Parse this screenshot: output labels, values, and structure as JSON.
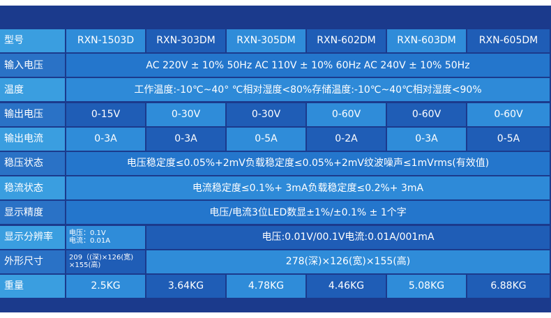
{
  "table": {
    "rows": [
      {
        "label": "型号",
        "cells": [
          "RXN-1503D",
          "RXN-303DM",
          "RXN-305DM",
          "RXN-602DM",
          "RXN-603DM",
          "RXN-605DM"
        ]
      },
      {
        "label": "输入电压",
        "cells": [
          "AC 220V ± 10% 50Hz AC 110V ± 10% 60Hz AC 240V ± 10% 50Hz"
        ]
      },
      {
        "label": "温度",
        "cells": [
          "工作温度:-10℃~40°  ℃相对湿度<80%存储温度:-10℃~40℃相对湿度<90%"
        ]
      },
      {
        "label": "输出电压",
        "cells": [
          "0-15V",
          "0-30V",
          "0-30V",
          "0-60V",
          "0-60V",
          "0-60V"
        ]
      },
      {
        "label": "输出电流",
        "cells": [
          "0-3A",
          "0-3A",
          "0-5A",
          "0-2A",
          "0-3A",
          "0-5A"
        ]
      },
      {
        "label": "稳压状态",
        "cells": [
          "电压稳定度≤0.05%+2mV负载稳定度≤0.05%+2mV纹波噪声≤1mVrms(有效值)"
        ]
      },
      {
        "label": "稳流状态",
        "cells": [
          "电流稳定度≤0.1%+ 3mA负载稳定度≤0.2%+ 3mA"
        ]
      },
      {
        "label": "显示精度",
        "cells": [
          "电压/电流3位LED数显±1%/±0.1% ± 1个字"
        ]
      },
      {
        "label": "显示分辨率",
        "cells": [
          "电压：0.1V\n电流：0.01A",
          "电压:0.01V/00.1V电流:0.01A/001mA"
        ]
      },
      {
        "label": "外形尺寸",
        "cells": [
          "209（(深)×126(宽)\n×155(高)",
          "278(深)×126(宽)×155(高)"
        ]
      },
      {
        "label": "重量",
        "cells": [
          "2.5KG",
          "3.64KG",
          "4.78KG",
          "4.46KG",
          "5.08KG",
          "6.88KG"
        ]
      }
    ]
  }
}
